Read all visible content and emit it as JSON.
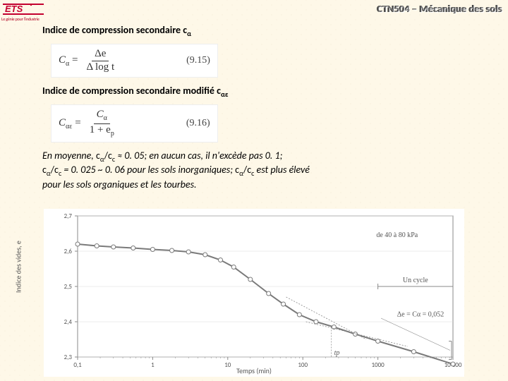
{
  "header": {
    "logo_text": "ETS",
    "logo_tagline": "Le génie pour l'industrie",
    "course": "CTN504 – Mécanique des sols"
  },
  "text": {
    "title1_a": "Indice de compression secondaire c",
    "title1_sub": "α",
    "title2_a": "Indice de compression secondaire modifié c",
    "title2_sub": "αε",
    "para_1": "En moyenne, ",
    "para_r1": "c",
    "para_r1s": "α",
    "para_r1b": "/c",
    "para_r1bs": "c",
    "para_2": " ≈ 0. 05; en aucun cas, il n'excède pas 0. 1;",
    "para_3a": "c",
    "para_3as": "α",
    "para_3b": "/c",
    "para_3bs": "c",
    "para_3c": "  =  0. 025 ~ 0. 06 pour les sols inorganiques;  ",
    "para_3d": "c",
    "para_3ds": "α",
    "para_3e": "/c",
    "para_3es": "c",
    "para_3f": "  est plus élevé",
    "para_4": "pour les sols organiques et les tourbes."
  },
  "eq1": {
    "lhs": "C",
    "lhs_sub": "α",
    "eq": " = ",
    "num": "Δe",
    "den": "Δ log t",
    "num_label": "(9.15)"
  },
  "eq2": {
    "lhs": "C",
    "lhs_sub": "αε",
    "eq": " = ",
    "num_a": "C",
    "num_as": "α",
    "den": "1 + e",
    "den_s": "p",
    "num_label": "(9.16)"
  },
  "chart": {
    "type": "line",
    "xlabel": "Temps (min)",
    "ylabel": "Indice des vides, e",
    "x_log": true,
    "xlim": [
      0.1,
      10000
    ],
    "ylim": [
      2.3,
      2.7
    ],
    "yticks": [
      2.3,
      2.4,
      2.5,
      2.6,
      2.7
    ],
    "xticks": [
      0.1,
      1,
      10,
      100,
      1000,
      10000
    ],
    "xticklabels": [
      "0,1",
      "1",
      "10",
      "100",
      "1000",
      "10 000"
    ],
    "line_color": "#7a7a7a",
    "line_width": 2,
    "marker_fill": "#ffffff",
    "marker_stroke": "#7a7a7a",
    "marker_r": 3,
    "grid_color": "#d8d8d8",
    "axis_color": "#888888",
    "background_color": "#ffffff",
    "annot_cycle": "Un cycle",
    "annot_delta": "Δe = Cα = 0,052",
    "annot_load": "de 40 à 80 kPa",
    "annot_tp": "tp",
    "points": [
      {
        "x": 0.1,
        "y": 2.62
      },
      {
        "x": 0.18,
        "y": 2.615
      },
      {
        "x": 0.3,
        "y": 2.612
      },
      {
        "x": 0.55,
        "y": 2.609
      },
      {
        "x": 1,
        "y": 2.605
      },
      {
        "x": 1.8,
        "y": 2.602
      },
      {
        "x": 3,
        "y": 2.598
      },
      {
        "x": 5,
        "y": 2.59
      },
      {
        "x": 8,
        "y": 2.575
      },
      {
        "x": 12,
        "y": 2.555
      },
      {
        "x": 20,
        "y": 2.52
      },
      {
        "x": 35,
        "y": 2.48
      },
      {
        "x": 55,
        "y": 2.45
      },
      {
        "x": 90,
        "y": 2.42
      },
      {
        "x": 150,
        "y": 2.4
      },
      {
        "x": 260,
        "y": 2.385
      },
      {
        "x": 500,
        "y": 2.365
      },
      {
        "x": 1000,
        "y": 2.345
      },
      {
        "x": 3000,
        "y": 2.315
      },
      {
        "x": 10000,
        "y": 2.28
      }
    ]
  }
}
